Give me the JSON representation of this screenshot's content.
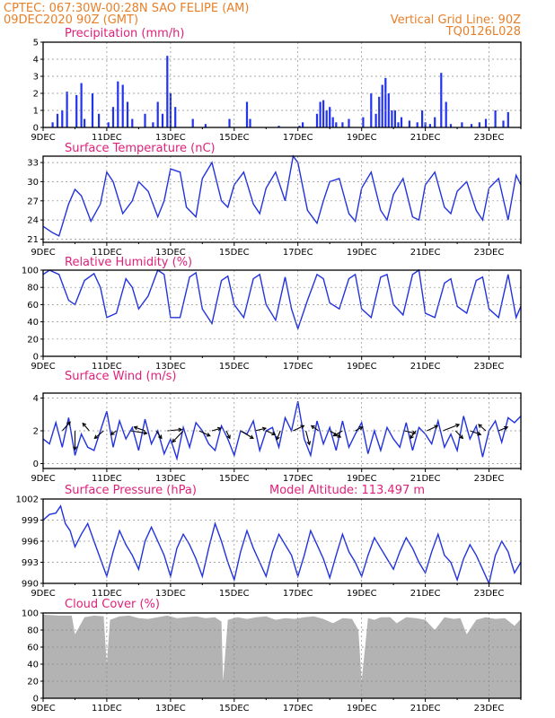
{
  "header": {
    "line1": "CPTEC:   067:30W-00:28N  SAO FELIPE (AM)",
    "line2": "09DEC2020 90Z (GMT)",
    "grid_note": "Vertical Grid Line: 90Z",
    "code": "TQ0126L028"
  },
  "x_ticks": [
    "9DEC",
    "11DEC",
    "13DEC",
    "15DEC",
    "17DEC",
    "19DEC",
    "21DEC",
    "23DEC"
  ],
  "colors": {
    "header": "#e8802a",
    "title": "#e0207a",
    "line": "#2233dd",
    "bar": "#2233ee",
    "cloud": "#b3b3b3",
    "arrow": "#000000"
  },
  "chart_data": [
    {
      "type": "bar",
      "title": "Precipitation (mm/h)",
      "ylim": [
        0,
        5
      ],
      "yticks": [
        0,
        1,
        2,
        3,
        4,
        5
      ],
      "x_range_days": [
        9,
        24
      ],
      "series": [
        {
          "x": [
            9.3,
            9.45,
            9.6,
            9.75,
            10.05,
            10.2,
            10.3,
            10.55,
            10.75,
            11.05,
            11.2,
            11.35,
            11.5,
            11.65,
            11.8,
            12.2,
            12.45,
            12.6,
            12.75,
            12.9,
            13.0,
            13.15,
            13.7,
            14.1,
            14.85,
            15.4,
            15.5,
            16.4,
            17.05,
            17.15,
            17.6,
            17.7,
            17.8,
            17.9,
            18.0,
            18.1,
            18.2,
            18.4,
            18.6,
            19.05,
            19.3,
            19.45,
            19.55,
            19.65,
            19.75,
            19.85,
            19.95,
            20.05,
            20.15,
            20.25,
            20.5,
            20.75,
            20.9,
            21.0,
            21.15,
            21.3,
            21.5,
            21.65,
            21.8,
            22.15,
            22.45,
            22.7,
            22.9,
            23.2,
            23.45,
            23.6
          ],
          "values": [
            0.3,
            0.8,
            1.0,
            2.1,
            1.9,
            2.6,
            0.5,
            2.0,
            0.8,
            0.3,
            1.2,
            2.7,
            2.5,
            1.5,
            0.5,
            0.8,
            0.3,
            1.5,
            0.8,
            4.2,
            2.0,
            1.2,
            0.5,
            0.2,
            0.5,
            1.5,
            0.5,
            0.1,
            0.1,
            0.3,
            0.8,
            1.5,
            1.6,
            1.0,
            1.2,
            0.6,
            0.3,
            0.3,
            0.5,
            0.6,
            2.0,
            0.8,
            1.8,
            2.5,
            2.9,
            2.0,
            1.0,
            1.0,
            0.3,
            0.6,
            0.4,
            0.3,
            1.0,
            0.3,
            0.2,
            0.6,
            3.2,
            1.5,
            0.2,
            0.3,
            0.2,
            0.3,
            0.5,
            1.0,
            0.4,
            0.9
          ]
        }
      ]
    },
    {
      "type": "line",
      "title": "Surface Temperature (nC)",
      "ylim": [
        20.5,
        34
      ],
      "yticks": [
        21,
        24,
        27,
        30,
        33
      ],
      "x_range_days": [
        9,
        24
      ],
      "series": [
        {
          "x": [
            9.0,
            9.3,
            9.5,
            9.8,
            10.0,
            10.2,
            10.5,
            10.8,
            11.0,
            11.2,
            11.5,
            11.8,
            12.0,
            12.3,
            12.6,
            12.8,
            13.0,
            13.3,
            13.5,
            13.8,
            14.0,
            14.3,
            14.6,
            14.8,
            15.0,
            15.3,
            15.6,
            15.8,
            16.0,
            16.3,
            16.6,
            16.85,
            17.0,
            17.3,
            17.6,
            17.8,
            18.0,
            18.3,
            18.6,
            18.8,
            19.0,
            19.3,
            19.6,
            19.8,
            20.0,
            20.3,
            20.6,
            20.8,
            21.0,
            21.3,
            21.6,
            21.8,
            22.0,
            22.3,
            22.6,
            22.8,
            23.0,
            23.3,
            23.6,
            23.85,
            24.0
          ],
          "values": [
            23.0,
            22.0,
            21.5,
            26.5,
            28.8,
            27.8,
            23.8,
            26.5,
            31.5,
            30.0,
            25.0,
            27.0,
            30.0,
            28.5,
            24.5,
            27.0,
            32.0,
            31.5,
            26.0,
            24.5,
            30.5,
            33.0,
            27.0,
            26.0,
            29.5,
            31.5,
            26.5,
            25.0,
            29.0,
            31.5,
            27.0,
            34.0,
            33.0,
            25.5,
            23.5,
            27.0,
            30.0,
            30.5,
            25.0,
            23.8,
            29.0,
            31.5,
            25.5,
            24.0,
            28.0,
            30.5,
            24.5,
            24.0,
            29.5,
            31.5,
            26.0,
            25.0,
            28.5,
            30.0,
            25.5,
            24.0,
            29.0,
            30.5,
            24.0,
            31.0,
            29.5
          ]
        }
      ]
    },
    {
      "type": "line",
      "title": "Relative Humidity (%)",
      "ylim": [
        0,
        100
      ],
      "yticks": [
        0,
        20,
        40,
        60,
        80,
        100
      ],
      "x_range_days": [
        9,
        24
      ],
      "series": [
        {
          "x": [
            9.0,
            9.2,
            9.5,
            9.8,
            10.0,
            10.3,
            10.6,
            10.8,
            11.0,
            11.3,
            11.6,
            11.8,
            12.0,
            12.3,
            12.6,
            12.8,
            13.0,
            13.3,
            13.6,
            13.8,
            14.0,
            14.3,
            14.6,
            14.8,
            15.0,
            15.3,
            15.6,
            15.8,
            16.0,
            16.3,
            16.6,
            16.8,
            17.0,
            17.3,
            17.6,
            17.8,
            18.0,
            18.3,
            18.6,
            18.8,
            19.0,
            19.3,
            19.6,
            19.8,
            20.0,
            20.3,
            20.6,
            20.8,
            21.0,
            21.3,
            21.6,
            21.8,
            22.0,
            22.3,
            22.6,
            22.8,
            23.0,
            23.3,
            23.6,
            23.85,
            24.0
          ],
          "values": [
            95.0,
            100.0,
            95.0,
            65.0,
            60.0,
            88.0,
            96.0,
            80.0,
            45.0,
            50.0,
            90.0,
            80.0,
            55.0,
            70.0,
            100.0,
            95.0,
            45.0,
            45.0,
            92.0,
            97.0,
            55.0,
            38.0,
            88.0,
            93.0,
            60.0,
            45.0,
            90.0,
            95.0,
            60.0,
            42.0,
            92.0,
            55.0,
            32.0,
            65.0,
            95.0,
            90.0,
            62.0,
            55.0,
            90.0,
            95.0,
            55.0,
            45.0,
            92.0,
            95.0,
            60.0,
            48.0,
            95.0,
            100.0,
            50.0,
            45.0,
            85.0,
            90.0,
            58.0,
            50.0,
            88.0,
            92.0,
            55.0,
            45.0,
            95.0,
            45.0,
            58.0
          ]
        }
      ]
    },
    {
      "type": "line",
      "title": "Surface Wind (m/s)",
      "ylim": [
        -0.3,
        4.3
      ],
      "yticks": [
        0,
        2,
        4
      ],
      "x_range_days": [
        9,
        24
      ],
      "series": [
        {
          "x": [
            9.0,
            9.2,
            9.4,
            9.6,
            9.8,
            10.0,
            10.2,
            10.4,
            10.6,
            10.8,
            11.0,
            11.2,
            11.4,
            11.6,
            11.8,
            12.0,
            12.2,
            12.4,
            12.6,
            12.8,
            13.0,
            13.2,
            13.4,
            13.6,
            13.8,
            14.0,
            14.2,
            14.4,
            14.6,
            14.8,
            15.0,
            15.2,
            15.4,
            15.6,
            15.8,
            16.0,
            16.2,
            16.4,
            16.6,
            16.8,
            17.0,
            17.2,
            17.4,
            17.6,
            17.8,
            18.0,
            18.2,
            18.4,
            18.6,
            18.8,
            19.0,
            19.2,
            19.4,
            19.6,
            19.8,
            20.0,
            20.2,
            20.4,
            20.6,
            20.8,
            21.0,
            21.2,
            21.4,
            21.6,
            21.8,
            22.0,
            22.2,
            22.4,
            22.6,
            22.8,
            23.0,
            23.2,
            23.4,
            23.6,
            23.8,
            24.0
          ],
          "values": [
            1.5,
            1.2,
            2.5,
            1.0,
            2.8,
            0.5,
            1.8,
            1.0,
            0.8,
            2.0,
            3.2,
            1.0,
            2.6,
            1.5,
            2.2,
            0.8,
            2.7,
            1.2,
            2.0,
            0.6,
            1.5,
            0.3,
            2.2,
            1.0,
            2.5,
            2.0,
            1.2,
            0.8,
            2.3,
            1.5,
            0.5,
            2.0,
            1.8,
            2.6,
            0.8,
            2.0,
            2.2,
            1.0,
            2.8,
            2.0,
            3.8,
            1.5,
            0.5,
            2.6,
            1.2,
            2.2,
            0.8,
            2.6,
            1.0,
            1.8,
            2.5,
            0.6,
            2.0,
            0.8,
            2.2,
            1.5,
            1.0,
            2.5,
            0.8,
            2.2,
            1.8,
            1.2,
            2.6,
            1.0,
            1.8,
            0.8,
            2.9,
            1.5,
            2.3,
            0.4,
            2.0,
            2.6,
            1.3,
            2.8,
            2.5,
            2.9
          ]
        }
      ],
      "arrows": [
        {
          "x": 9.6,
          "dx": 0.22,
          "dy": -0.7
        },
        {
          "x": 10.0,
          "dx": 0.0,
          "dy": 1.5
        },
        {
          "x": 10.45,
          "dx": -0.18,
          "dy": -0.6
        },
        {
          "x": 10.9,
          "dx": -0.25,
          "dy": 0.6
        },
        {
          "x": 11.3,
          "dx": -0.15,
          "dy": 0.3
        },
        {
          "x": 11.75,
          "dx": 0.45,
          "dy": 0.2
        },
        {
          "x": 12.2,
          "dx": -0.3,
          "dy": -0.3
        },
        {
          "x": 12.55,
          "dx": 0.15,
          "dy": 0.6
        },
        {
          "x": 12.9,
          "dx": 0.4,
          "dy": -0.1
        },
        {
          "x": 13.4,
          "dx": -0.3,
          "dy": 0.9
        },
        {
          "x": 13.9,
          "dx": 0.3,
          "dy": 0.4
        },
        {
          "x": 14.3,
          "dx": 0.25,
          "dy": -0.2
        },
        {
          "x": 14.75,
          "dx": 0.1,
          "dy": 0.6
        },
        {
          "x": 15.2,
          "dx": 0.35,
          "dy": 0.6
        },
        {
          "x": 15.65,
          "dx": 0.3,
          "dy": -0.2
        },
        {
          "x": 16.0,
          "dx": 0.25,
          "dy": 0.3
        },
        {
          "x": 16.45,
          "dx": -0.1,
          "dy": 0.7
        },
        {
          "x": 16.85,
          "dx": 0.3,
          "dy": -0.4
        },
        {
          "x": 17.25,
          "dx": 0.1,
          "dy": 1.1
        },
        {
          "x": 17.65,
          "dx": -0.2,
          "dy": -0.4
        },
        {
          "x": 18.0,
          "dx": 0.3,
          "dy": 0.5
        },
        {
          "x": 18.4,
          "dx": -0.25,
          "dy": 0.4
        },
        {
          "x": 18.8,
          "dx": 0.2,
          "dy": -0.3
        },
        {
          "x": 20.35,
          "dx": 0.3,
          "dy": 0.2
        },
        {
          "x": 20.7,
          "dx": -0.15,
          "dy": 0.6
        },
        {
          "x": 21.05,
          "dx": 0.3,
          "dy": -0.4
        },
        {
          "x": 21.55,
          "dx": 0.45,
          "dy": -0.5
        },
        {
          "x": 21.95,
          "dx": 0.2,
          "dy": 0.6
        },
        {
          "x": 22.4,
          "dx": 0.3,
          "dy": 0.3
        },
        {
          "x": 22.9,
          "dx": -0.2,
          "dy": -0.5
        },
        {
          "x": 23.3,
          "dx": 0.25,
          "dy": -0.3
        }
      ]
    },
    {
      "type": "line",
      "title": "Surface Pressure (hPa)",
      "subtitle": "Model Altitude: 113.497 m",
      "ylim": [
        990,
        1002
      ],
      "yticks": [
        990,
        993,
        996,
        999,
        1002
      ],
      "x_range_days": [
        9,
        24
      ],
      "series": [
        {
          "x": [
            9.0,
            9.2,
            9.4,
            9.55,
            9.7,
            9.85,
            10.0,
            10.2,
            10.4,
            10.6,
            10.8,
            11.0,
            11.2,
            11.4,
            11.6,
            11.8,
            12.0,
            12.2,
            12.4,
            12.6,
            12.8,
            13.0,
            13.2,
            13.4,
            13.6,
            13.8,
            14.0,
            14.2,
            14.4,
            14.6,
            14.8,
            15.0,
            15.2,
            15.4,
            15.6,
            15.8,
            16.0,
            16.2,
            16.4,
            16.6,
            16.8,
            17.0,
            17.2,
            17.4,
            17.6,
            17.8,
            18.0,
            18.2,
            18.4,
            18.6,
            18.8,
            19.0,
            19.2,
            19.4,
            19.6,
            19.8,
            20.0,
            20.2,
            20.4,
            20.6,
            20.8,
            21.0,
            21.2,
            21.4,
            21.6,
            21.8,
            22.0,
            22.2,
            22.4,
            22.6,
            22.8,
            23.0,
            23.2,
            23.4,
            23.6,
            23.8,
            24.0
          ],
          "values": [
            999.0,
            999.8,
            1000.0,
            1001.0,
            998.5,
            997.5,
            995.2,
            997.0,
            998.5,
            996.0,
            993.5,
            991.0,
            994.5,
            997.5,
            995.5,
            994.0,
            992.0,
            996.0,
            998.0,
            996.0,
            994.0,
            991.0,
            995.0,
            997.0,
            995.5,
            993.5,
            991.0,
            995.0,
            998.5,
            996.0,
            993.0,
            990.5,
            994.5,
            997.5,
            995.0,
            993.0,
            991.0,
            994.5,
            997.0,
            995.5,
            994.0,
            991.0,
            994.0,
            997.5,
            995.5,
            993.5,
            990.8,
            994.0,
            997.0,
            994.5,
            993.0,
            991.0,
            994.0,
            996.5,
            995.0,
            993.5,
            992.0,
            994.5,
            996.5,
            995.0,
            993.0,
            991.5,
            994.5,
            997.0,
            994.0,
            993.0,
            990.5,
            993.5,
            995.5,
            994.0,
            992.0,
            990.0,
            994.0,
            996.0,
            994.5,
            991.5,
            993.0
          ]
        }
      ]
    },
    {
      "type": "area",
      "title": "Cloud Cover (%)",
      "ylim": [
        0,
        100
      ],
      "yticks": [
        0,
        20,
        40,
        60,
        80,
        100
      ],
      "x_range_days": [
        9,
        24
      ],
      "series": [
        {
          "x": [
            9.0,
            9.5,
            9.9,
            10.0,
            10.3,
            10.6,
            10.9,
            11.0,
            11.1,
            11.4,
            11.7,
            12.0,
            12.3,
            12.6,
            12.9,
            13.2,
            13.5,
            13.8,
            14.1,
            14.4,
            14.6,
            14.65,
            14.8,
            15.1,
            15.4,
            15.7,
            16.0,
            16.3,
            16.6,
            16.9,
            17.2,
            17.5,
            17.8,
            18.1,
            18.4,
            18.7,
            18.9,
            19.0,
            19.2,
            19.4,
            19.6,
            19.9,
            20.1,
            20.4,
            20.7,
            21.0,
            21.3,
            21.6,
            21.9,
            22.1,
            22.3,
            22.6,
            22.9,
            23.2,
            23.5,
            23.8,
            24.0
          ],
          "values": [
            98,
            97,
            97,
            75,
            95,
            97,
            96,
            40,
            92,
            96,
            97,
            94,
            93,
            95,
            97,
            94,
            95,
            96,
            94,
            95,
            90,
            20,
            92,
            95,
            93,
            95,
            96,
            92,
            94,
            93,
            95,
            96,
            93,
            88,
            94,
            93,
            80,
            20,
            94,
            92,
            95,
            95,
            88,
            95,
            94,
            92,
            80,
            95,
            93,
            94,
            75,
            92,
            95,
            93,
            94,
            85,
            93
          ]
        }
      ]
    }
  ]
}
